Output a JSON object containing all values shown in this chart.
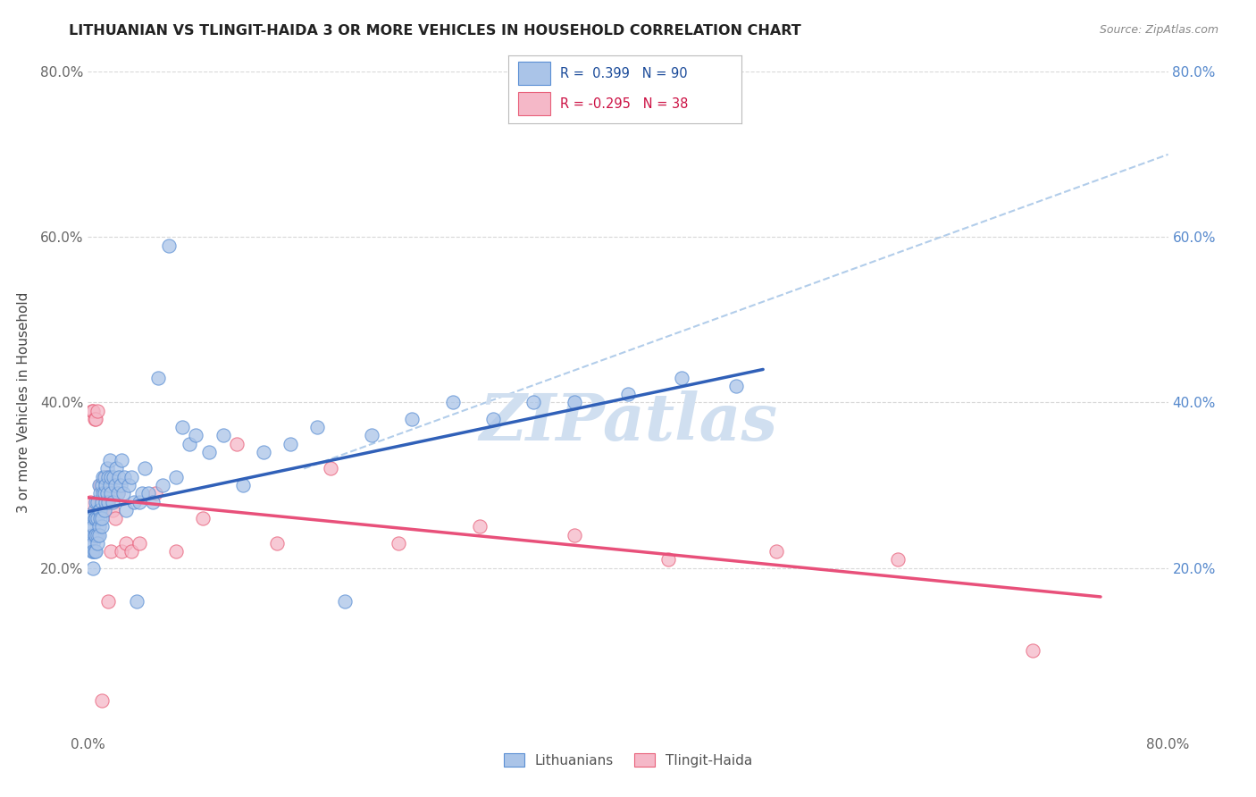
{
  "title": "LITHUANIAN VS TLINGIT-HAIDA 3 OR MORE VEHICLES IN HOUSEHOLD CORRELATION CHART",
  "source": "Source: ZipAtlas.com",
  "ylabel": "3 or more Vehicles in Household",
  "xlim": [
    0.0,
    0.8
  ],
  "ylim": [
    0.0,
    0.8
  ],
  "xtick_positions": [
    0.0,
    0.1,
    0.2,
    0.3,
    0.4,
    0.5,
    0.6,
    0.7,
    0.8
  ],
  "xticklabels": [
    "0.0%",
    "",
    "",
    "",
    "",
    "",
    "",
    "",
    "80.0%"
  ],
  "left_ytick_positions": [
    0.2,
    0.4,
    0.6,
    0.8
  ],
  "left_yticklabels": [
    "20.0%",
    "40.0%",
    "60.0%",
    "80.0%"
  ],
  "right_ytick_positions": [
    0.2,
    0.4,
    0.6,
    0.8
  ],
  "right_yticklabels": [
    "20.0%",
    "40.0%",
    "60.0%",
    "80.0%"
  ],
  "blue_R": 0.399,
  "blue_N": 90,
  "pink_R": -0.295,
  "pink_N": 38,
  "blue_dot_color": "#aac4e8",
  "blue_edge_color": "#5b8fd4",
  "pink_dot_color": "#f5b8c8",
  "pink_edge_color": "#e8607a",
  "blue_line_color": "#3060b8",
  "pink_line_color": "#e8507a",
  "dashed_line_color": "#aac8e8",
  "watermark_text": "ZIPatlas",
  "watermark_color": "#d0dff0",
  "background_color": "#ffffff",
  "grid_color": "#d8d8d8",
  "title_color": "#222222",
  "source_color": "#888888",
  "right_tick_color": "#5588cc",
  "blue_scatter_x": [
    0.002,
    0.002,
    0.003,
    0.003,
    0.003,
    0.004,
    0.004,
    0.004,
    0.004,
    0.005,
    0.005,
    0.005,
    0.005,
    0.006,
    0.006,
    0.006,
    0.006,
    0.007,
    0.007,
    0.007,
    0.007,
    0.008,
    0.008,
    0.008,
    0.008,
    0.009,
    0.009,
    0.009,
    0.01,
    0.01,
    0.01,
    0.01,
    0.011,
    0.011,
    0.012,
    0.012,
    0.012,
    0.013,
    0.013,
    0.014,
    0.014,
    0.015,
    0.015,
    0.016,
    0.016,
    0.017,
    0.017,
    0.018,
    0.019,
    0.02,
    0.021,
    0.022,
    0.023,
    0.024,
    0.025,
    0.026,
    0.027,
    0.028,
    0.03,
    0.032,
    0.034,
    0.036,
    0.038,
    0.04,
    0.042,
    0.045,
    0.048,
    0.052,
    0.055,
    0.06,
    0.065,
    0.07,
    0.075,
    0.08,
    0.09,
    0.1,
    0.115,
    0.13,
    0.15,
    0.17,
    0.19,
    0.21,
    0.24,
    0.27,
    0.3,
    0.33,
    0.36,
    0.4,
    0.44,
    0.48
  ],
  "blue_scatter_y": [
    0.25,
    0.23,
    0.24,
    0.22,
    0.26,
    0.23,
    0.25,
    0.22,
    0.2,
    0.24,
    0.27,
    0.22,
    0.26,
    0.24,
    0.26,
    0.28,
    0.22,
    0.24,
    0.26,
    0.28,
    0.23,
    0.25,
    0.27,
    0.3,
    0.24,
    0.27,
    0.29,
    0.26,
    0.28,
    0.25,
    0.3,
    0.26,
    0.29,
    0.31,
    0.27,
    0.29,
    0.31,
    0.28,
    0.3,
    0.29,
    0.32,
    0.31,
    0.28,
    0.3,
    0.33,
    0.29,
    0.31,
    0.28,
    0.31,
    0.3,
    0.32,
    0.29,
    0.31,
    0.3,
    0.33,
    0.29,
    0.31,
    0.27,
    0.3,
    0.31,
    0.28,
    0.16,
    0.28,
    0.29,
    0.32,
    0.29,
    0.28,
    0.43,
    0.3,
    0.59,
    0.31,
    0.37,
    0.35,
    0.36,
    0.34,
    0.36,
    0.3,
    0.34,
    0.35,
    0.37,
    0.16,
    0.36,
    0.38,
    0.4,
    0.38,
    0.4,
    0.4,
    0.41,
    0.43,
    0.42
  ],
  "pink_scatter_x": [
    0.002,
    0.003,
    0.004,
    0.005,
    0.006,
    0.007,
    0.007,
    0.008,
    0.009,
    0.01,
    0.01,
    0.011,
    0.012,
    0.013,
    0.014,
    0.015,
    0.016,
    0.017,
    0.018,
    0.02,
    0.022,
    0.025,
    0.028,
    0.032,
    0.038,
    0.05,
    0.065,
    0.085,
    0.11,
    0.14,
    0.18,
    0.23,
    0.29,
    0.36,
    0.43,
    0.51,
    0.6,
    0.7
  ],
  "pink_scatter_y": [
    0.28,
    0.39,
    0.39,
    0.38,
    0.38,
    0.39,
    0.27,
    0.28,
    0.3,
    0.27,
    0.04,
    0.28,
    0.29,
    0.31,
    0.28,
    0.16,
    0.29,
    0.22,
    0.27,
    0.26,
    0.29,
    0.22,
    0.23,
    0.22,
    0.23,
    0.29,
    0.22,
    0.26,
    0.35,
    0.23,
    0.32,
    0.23,
    0.25,
    0.24,
    0.21,
    0.22,
    0.21,
    0.1
  ],
  "blue_line_x": [
    0.0,
    0.5
  ],
  "blue_line_y": [
    0.268,
    0.44
  ],
  "pink_line_x": [
    0.0,
    0.75
  ],
  "pink_line_y": [
    0.285,
    0.165
  ],
  "dashed_line_x": [
    0.16,
    0.8
  ],
  "dashed_line_y": [
    0.32,
    0.7
  ]
}
